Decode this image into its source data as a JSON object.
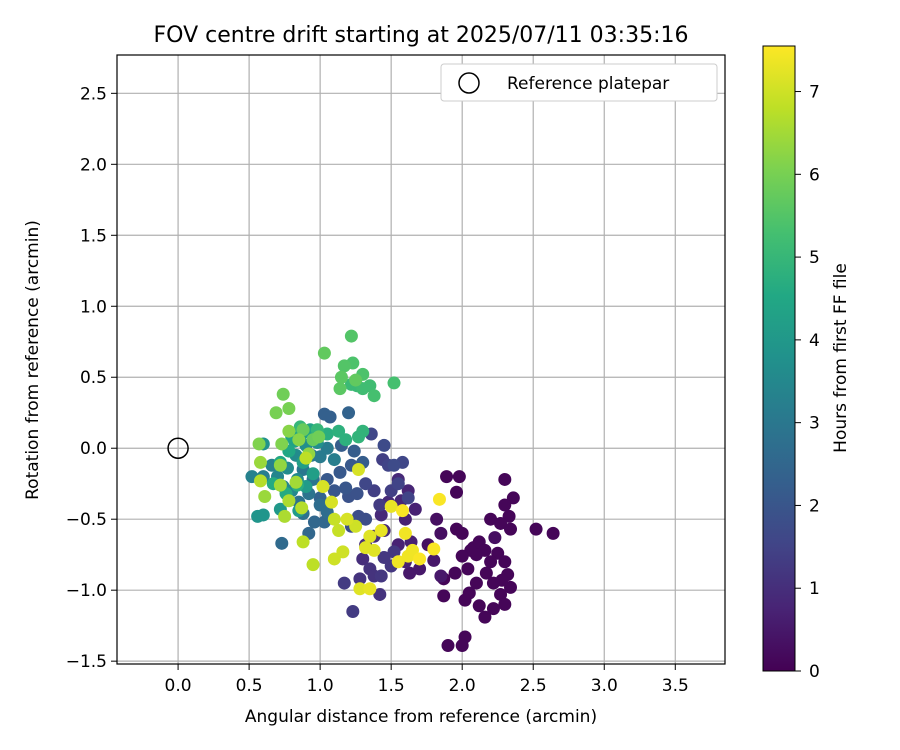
{
  "chart_data": {
    "type": "scatter",
    "title": "FOV centre drift starting at 2025/07/11 03:35:16",
    "xlabel": "Angular distance from reference (arcmin)",
    "ylabel": "Rotation from reference (arcmin)",
    "xlim": [
      -0.43,
      3.85
    ],
    "ylim": [
      -1.52,
      2.77
    ],
    "xticks": [
      "0.0",
      "0.5",
      "1.0",
      "1.5",
      "2.0",
      "2.5",
      "3.0",
      "3.5"
    ],
    "xtick_values": [
      0.0,
      0.5,
      1.0,
      1.5,
      2.0,
      2.5,
      3.0,
      3.5
    ],
    "yticks": [
      "−1.5",
      "−1.0",
      "−0.5",
      "0.0",
      "0.5",
      "1.0",
      "1.5",
      "2.0",
      "2.5"
    ],
    "ytick_values": [
      -1.5,
      -1.0,
      -0.5,
      0.0,
      0.5,
      1.0,
      1.5,
      2.0,
      2.5
    ],
    "grid": true,
    "legend": {
      "position": "top-right",
      "entries": [
        "Reference platepar"
      ]
    },
    "reference_point": {
      "x": 0.0,
      "y": 0.0
    },
    "colorbar": {
      "label": "Hours from first FF file",
      "colormap": "viridis",
      "min": 0,
      "max": 7.55,
      "ticks": [
        "0",
        "1",
        "2",
        "3",
        "4",
        "5",
        "6",
        "7"
      ],
      "tick_values": [
        0,
        1,
        2,
        3,
        4,
        5,
        6,
        7
      ]
    },
    "points": [
      {
        "x": 1.89,
        "y": -0.2,
        "t": 0.1
      },
      {
        "x": 1.98,
        "y": -0.2,
        "t": 0.1
      },
      {
        "x": 1.96,
        "y": -0.31,
        "t": 0.1
      },
      {
        "x": 2.3,
        "y": -0.22,
        "t": 0.1
      },
      {
        "x": 2.36,
        "y": -0.35,
        "t": 0.1
      },
      {
        "x": 2.3,
        "y": -0.4,
        "t": 0.1
      },
      {
        "x": 2.33,
        "y": -0.48,
        "t": 0.1
      },
      {
        "x": 2.2,
        "y": -0.5,
        "t": 0.1
      },
      {
        "x": 2.27,
        "y": -0.53,
        "t": 0.1
      },
      {
        "x": 2.34,
        "y": -0.57,
        "t": 0.1
      },
      {
        "x": 2.52,
        "y": -0.57,
        "t": 0.1
      },
      {
        "x": 2.64,
        "y": -0.6,
        "t": 0.1
      },
      {
        "x": 2.08,
        "y": -0.7,
        "t": 0.1
      },
      {
        "x": 2.12,
        "y": -0.66,
        "t": 0.1
      },
      {
        "x": 2.16,
        "y": -0.72,
        "t": 0.1
      },
      {
        "x": 2.25,
        "y": -0.74,
        "t": 0.1
      },
      {
        "x": 2.3,
        "y": -0.8,
        "t": 0.1
      },
      {
        "x": 2.32,
        "y": -0.89,
        "t": 0.1
      },
      {
        "x": 2.34,
        "y": -0.98,
        "t": 0.1
      },
      {
        "x": 2.27,
        "y": -1.03,
        "t": 0.1
      },
      {
        "x": 2.3,
        "y": -1.1,
        "t": 0.1
      },
      {
        "x": 2.22,
        "y": -1.13,
        "t": 0.1
      },
      {
        "x": 2.16,
        "y": -1.19,
        "t": 0.1
      },
      {
        "x": 2.12,
        "y": -1.11,
        "t": 0.1
      },
      {
        "x": 2.05,
        "y": -1.02,
        "t": 0.1
      },
      {
        "x": 2.02,
        "y": -1.07,
        "t": 0.1
      },
      {
        "x": 2.1,
        "y": -0.95,
        "t": 0.1
      },
      {
        "x": 2.17,
        "y": -0.88,
        "t": 0.1
      },
      {
        "x": 2.2,
        "y": -0.8,
        "t": 0.1
      },
      {
        "x": 2.1,
        "y": -0.75,
        "t": 0.1
      },
      {
        "x": 2.06,
        "y": -0.72,
        "t": 0.1
      },
      {
        "x": 2.0,
        "y": -0.76,
        "t": 0.1
      },
      {
        "x": 2.04,
        "y": -0.85,
        "t": 0.1
      },
      {
        "x": 1.95,
        "y": -0.88,
        "t": 0.1
      },
      {
        "x": 1.87,
        "y": -0.92,
        "t": 0.1
      },
      {
        "x": 1.87,
        "y": -1.04,
        "t": 0.1
      },
      {
        "x": 2.02,
        "y": -1.33,
        "t": 0.1
      },
      {
        "x": 2.0,
        "y": -1.39,
        "t": 0.1
      },
      {
        "x": 1.9,
        "y": -1.39,
        "t": 0.1
      },
      {
        "x": 2.0,
        "y": -0.6,
        "t": 0.1
      },
      {
        "x": 1.96,
        "y": -0.57,
        "t": 0.1
      },
      {
        "x": 2.22,
        "y": -0.95,
        "t": 0.1
      },
      {
        "x": 2.28,
        "y": -0.93,
        "t": 0.1
      },
      {
        "x": 1.82,
        "y": -0.5,
        "t": 0.3
      },
      {
        "x": 1.85,
        "y": -0.6,
        "t": 0.3
      },
      {
        "x": 2.23,
        "y": -0.63,
        "t": 0.3
      },
      {
        "x": 1.76,
        "y": -0.68,
        "t": 0.3
      },
      {
        "x": 1.8,
        "y": -0.79,
        "t": 0.5
      },
      {
        "x": 1.85,
        "y": -0.9,
        "t": 0.5
      },
      {
        "x": 1.7,
        "y": -0.85,
        "t": 0.5
      },
      {
        "x": 1.63,
        "y": -0.88,
        "t": 0.5
      },
      {
        "x": 1.6,
        "y": -0.8,
        "t": 0.7
      },
      {
        "x": 1.55,
        "y": -0.68,
        "t": 0.7
      },
      {
        "x": 1.64,
        "y": -0.66,
        "t": 0.7
      },
      {
        "x": 1.6,
        "y": -0.5,
        "t": 0.7
      },
      {
        "x": 1.67,
        "y": -0.43,
        "t": 0.7
      },
      {
        "x": 1.57,
        "y": -0.37,
        "t": 0.8
      },
      {
        "x": 1.62,
        "y": -0.3,
        "t": 0.8
      },
      {
        "x": 1.55,
        "y": -0.22,
        "t": 0.9
      },
      {
        "x": 1.48,
        "y": -0.38,
        "t": 0.9
      },
      {
        "x": 1.43,
        "y": -0.47,
        "t": 0.9
      },
      {
        "x": 1.45,
        "y": -0.58,
        "t": 0.9
      },
      {
        "x": 1.38,
        "y": -0.62,
        "t": 1.0
      },
      {
        "x": 1.32,
        "y": -0.68,
        "t": 1.0
      },
      {
        "x": 1.3,
        "y": -0.78,
        "t": 1.0
      },
      {
        "x": 1.35,
        "y": -0.85,
        "t": 1.1
      },
      {
        "x": 1.38,
        "y": -0.9,
        "t": 1.1
      },
      {
        "x": 1.28,
        "y": -0.92,
        "t": 1.1
      },
      {
        "x": 1.42,
        "y": -1.03,
        "t": 1.1
      },
      {
        "x": 1.43,
        "y": -0.9,
        "t": 1.2
      },
      {
        "x": 1.5,
        "y": -0.83,
        "t": 1.2
      },
      {
        "x": 1.45,
        "y": -0.77,
        "t": 1.2
      },
      {
        "x": 1.52,
        "y": -0.73,
        "t": 1.2
      },
      {
        "x": 1.17,
        "y": -0.95,
        "t": 1.3
      },
      {
        "x": 1.23,
        "y": -1.15,
        "t": 1.3
      },
      {
        "x": 1.42,
        "y": -0.4,
        "t": 1.3
      },
      {
        "x": 1.5,
        "y": -0.3,
        "t": 1.4
      },
      {
        "x": 1.38,
        "y": -0.3,
        "t": 1.4
      },
      {
        "x": 1.44,
        "y": -0.08,
        "t": 1.4
      },
      {
        "x": 1.48,
        "y": -0.12,
        "t": 1.5
      },
      {
        "x": 1.55,
        "y": -0.25,
        "t": 1.5
      },
      {
        "x": 1.62,
        "y": -0.35,
        "t": 1.5
      },
      {
        "x": 1.58,
        "y": -0.1,
        "t": 1.6
      },
      {
        "x": 1.32,
        "y": -0.25,
        "t": 1.6
      },
      {
        "x": 1.36,
        "y": 0.1,
        "t": 1.6
      },
      {
        "x": 1.45,
        "y": 0.02,
        "t": 1.7
      },
      {
        "x": 1.52,
        "y": -0.12,
        "t": 1.7
      },
      {
        "x": 1.27,
        "y": -0.48,
        "t": 1.8
      },
      {
        "x": 1.32,
        "y": -0.5,
        "t": 1.8
      },
      {
        "x": 1.22,
        "y": -0.55,
        "t": 1.8
      },
      {
        "x": 1.2,
        "y": -0.34,
        "t": 1.9
      },
      {
        "x": 1.26,
        "y": -0.32,
        "t": 1.9
      },
      {
        "x": 1.18,
        "y": -0.28,
        "t": 2.0
      },
      {
        "x": 1.1,
        "y": -0.3,
        "t": 2.0
      },
      {
        "x": 1.05,
        "y": -0.22,
        "t": 2.1
      },
      {
        "x": 1.14,
        "y": -0.17,
        "t": 2.1
      },
      {
        "x": 1.22,
        "y": -0.12,
        "t": 2.1
      },
      {
        "x": 1.3,
        "y": -0.1,
        "t": 2.2
      },
      {
        "x": 1.24,
        "y": -0.02,
        "t": 2.2
      },
      {
        "x": 1.15,
        "y": 0.02,
        "t": 2.2
      },
      {
        "x": 1.03,
        "y": 0.24,
        "t": 2.3
      },
      {
        "x": 1.07,
        "y": 0.22,
        "t": 2.3
      },
      {
        "x": 1.2,
        "y": 0.25,
        "t": 2.4
      },
      {
        "x": 1.0,
        "y": -0.35,
        "t": 2.4
      },
      {
        "x": 0.96,
        "y": -0.52,
        "t": 2.5
      },
      {
        "x": 0.92,
        "y": -0.6,
        "t": 2.5
      },
      {
        "x": 1.03,
        "y": -0.52,
        "t": 2.5
      },
      {
        "x": 0.73,
        "y": -0.67,
        "t": 2.6
      },
      {
        "x": 1.0,
        "y": -0.4,
        "t": 2.7
      },
      {
        "x": 1.05,
        "y": -0.45,
        "t": 2.7
      },
      {
        "x": 0.88,
        "y": -0.46,
        "t": 2.8
      },
      {
        "x": 0.85,
        "y": -0.38,
        "t": 2.8
      },
      {
        "x": 0.92,
        "y": -0.32,
        "t": 2.9
      },
      {
        "x": 0.95,
        "y": -0.22,
        "t": 2.9
      },
      {
        "x": 0.88,
        "y": -0.15,
        "t": 3.0
      },
      {
        "x": 0.94,
        "y": -0.05,
        "t": 3.0
      },
      {
        "x": 1.0,
        "y": -0.06,
        "t": 3.1
      },
      {
        "x": 1.05,
        "y": 0.0,
        "t": 3.1
      },
      {
        "x": 1.1,
        "y": -0.08,
        "t": 3.2
      },
      {
        "x": 0.6,
        "y": -0.2,
        "t": 3.2
      },
      {
        "x": 0.52,
        "y": -0.2,
        "t": 3.3
      },
      {
        "x": 0.66,
        "y": -0.12,
        "t": 3.3
      },
      {
        "x": 0.7,
        "y": -0.2,
        "t": 3.4
      },
      {
        "x": 0.74,
        "y": -0.27,
        "t": 3.4
      },
      {
        "x": 0.8,
        "y": -0.3,
        "t": 3.5
      },
      {
        "x": 0.84,
        "y": -0.22,
        "t": 3.5
      },
      {
        "x": 0.77,
        "y": -0.14,
        "t": 3.6
      },
      {
        "x": 0.83,
        "y": -0.05,
        "t": 3.6
      },
      {
        "x": 0.9,
        "y": 0.02,
        "t": 3.7
      },
      {
        "x": 0.98,
        "y": 0.04,
        "t": 3.7
      },
      {
        "x": 0.6,
        "y": 0.03,
        "t": 3.8
      },
      {
        "x": 0.56,
        "y": -0.48,
        "t": 3.9
      },
      {
        "x": 0.6,
        "y": -0.47,
        "t": 3.9
      },
      {
        "x": 0.72,
        "y": -0.43,
        "t": 4.0
      },
      {
        "x": 0.85,
        "y": -0.44,
        "t": 4.1
      },
      {
        "x": 0.9,
        "y": -0.27,
        "t": 4.1
      },
      {
        "x": 0.95,
        "y": -0.18,
        "t": 4.2
      },
      {
        "x": 0.88,
        "y": -0.1,
        "t": 4.2
      },
      {
        "x": 0.82,
        "y": 0.05,
        "t": 4.3
      },
      {
        "x": 0.87,
        "y": 0.1,
        "t": 4.3
      },
      {
        "x": 0.93,
        "y": 0.13,
        "t": 4.4
      },
      {
        "x": 0.8,
        "y": 0.08,
        "t": 4.4
      },
      {
        "x": 0.78,
        "y": -0.02,
        "t": 4.5
      },
      {
        "x": 0.72,
        "y": -0.1,
        "t": 4.5
      },
      {
        "x": 0.67,
        "y": -0.25,
        "t": 4.6
      },
      {
        "x": 0.76,
        "y": -0.32,
        "t": 4.6
      },
      {
        "x": 0.84,
        "y": -0.26,
        "t": 4.7
      },
      {
        "x": 1.05,
        "y": 0.1,
        "t": 4.7
      },
      {
        "x": 1.13,
        "y": 0.12,
        "t": 4.8
      },
      {
        "x": 1.18,
        "y": 0.06,
        "t": 4.8
      },
      {
        "x": 1.27,
        "y": 0.08,
        "t": 4.9
      },
      {
        "x": 1.3,
        "y": 0.12,
        "t": 4.9
      },
      {
        "x": 0.98,
        "y": 0.13,
        "t": 5.0
      },
      {
        "x": 0.86,
        "y": 0.15,
        "t": 5.0
      },
      {
        "x": 1.22,
        "y": 0.45,
        "t": 5.1
      },
      {
        "x": 1.26,
        "y": 0.44,
        "t": 5.1
      },
      {
        "x": 1.3,
        "y": 0.42,
        "t": 5.2
      },
      {
        "x": 1.35,
        "y": 0.44,
        "t": 5.2
      },
      {
        "x": 1.38,
        "y": 0.37,
        "t": 5.3
      },
      {
        "x": 1.52,
        "y": 0.46,
        "t": 5.3
      },
      {
        "x": 1.3,
        "y": 0.52,
        "t": 5.4
      },
      {
        "x": 1.23,
        "y": 0.6,
        "t": 5.4
      },
      {
        "x": 1.17,
        "y": 0.58,
        "t": 5.5
      },
      {
        "x": 1.22,
        "y": 0.79,
        "t": 5.5
      },
      {
        "x": 1.14,
        "y": 0.42,
        "t": 5.6
      },
      {
        "x": 1.15,
        "y": 0.5,
        "t": 5.6
      },
      {
        "x": 1.25,
        "y": 0.48,
        "t": 5.7
      },
      {
        "x": 1.03,
        "y": 0.67,
        "t": 5.7
      },
      {
        "x": 0.88,
        "y": 0.13,
        "t": 5.8
      },
      {
        "x": 0.95,
        "y": 0.06,
        "t": 5.8
      },
      {
        "x": 0.99,
        "y": 0.08,
        "t": 5.9
      },
      {
        "x": 0.74,
        "y": 0.38,
        "t": 5.9
      },
      {
        "x": 0.78,
        "y": 0.28,
        "t": 6.0
      },
      {
        "x": 0.69,
        "y": 0.25,
        "t": 6.0
      },
      {
        "x": 0.57,
        "y": 0.03,
        "t": 6.1
      },
      {
        "x": 0.73,
        "y": 0.03,
        "t": 6.1
      },
      {
        "x": 0.78,
        "y": 0.12,
        "t": 6.2
      },
      {
        "x": 0.85,
        "y": 0.06,
        "t": 6.2
      },
      {
        "x": 0.92,
        "y": -0.04,
        "t": 6.3
      },
      {
        "x": 0.72,
        "y": -0.12,
        "t": 6.3
      },
      {
        "x": 0.61,
        "y": -0.34,
        "t": 6.4
      },
      {
        "x": 0.58,
        "y": -0.1,
        "t": 6.4
      },
      {
        "x": 0.72,
        "y": -0.26,
        "t": 6.5
      },
      {
        "x": 0.83,
        "y": -0.24,
        "t": 6.5
      },
      {
        "x": 0.78,
        "y": -0.37,
        "t": 6.6
      },
      {
        "x": 0.75,
        "y": -0.48,
        "t": 6.6
      },
      {
        "x": 0.87,
        "y": -0.42,
        "t": 6.7
      },
      {
        "x": 0.58,
        "y": -0.23,
        "t": 6.7
      },
      {
        "x": 0.9,
        "y": -0.07,
        "t": 6.8
      },
      {
        "x": 0.88,
        "y": -0.66,
        "t": 6.8
      },
      {
        "x": 0.95,
        "y": -0.82,
        "t": 6.8
      },
      {
        "x": 1.1,
        "y": -0.5,
        "t": 6.9
      },
      {
        "x": 1.13,
        "y": -0.58,
        "t": 6.9
      },
      {
        "x": 1.25,
        "y": -0.55,
        "t": 7.0
      },
      {
        "x": 1.16,
        "y": -0.73,
        "t": 7.0
      },
      {
        "x": 1.1,
        "y": -0.78,
        "t": 7.0
      },
      {
        "x": 1.02,
        "y": -0.27,
        "t": 7.1
      },
      {
        "x": 1.08,
        "y": -0.38,
        "t": 7.1
      },
      {
        "x": 1.19,
        "y": -0.5,
        "t": 7.1
      },
      {
        "x": 1.27,
        "y": -0.15,
        "t": 7.1
      },
      {
        "x": 1.32,
        "y": -0.7,
        "t": 7.2
      },
      {
        "x": 1.38,
        "y": -0.72,
        "t": 7.2
      },
      {
        "x": 1.35,
        "y": -0.62,
        "t": 7.2
      },
      {
        "x": 1.28,
        "y": -0.99,
        "t": 7.2
      },
      {
        "x": 1.35,
        "y": -0.99,
        "t": 7.3
      },
      {
        "x": 1.43,
        "y": -0.58,
        "t": 7.3
      },
      {
        "x": 1.5,
        "y": -0.41,
        "t": 7.3
      },
      {
        "x": 1.55,
        "y": -0.8,
        "t": 7.4
      },
      {
        "x": 1.62,
        "y": -0.76,
        "t": 7.4
      },
      {
        "x": 1.65,
        "y": -0.72,
        "t": 7.4
      },
      {
        "x": 1.6,
        "y": -0.6,
        "t": 7.4
      },
      {
        "x": 1.58,
        "y": -0.44,
        "t": 7.5
      },
      {
        "x": 1.8,
        "y": -0.71,
        "t": 7.5
      },
      {
        "x": 1.84,
        "y": -0.36,
        "t": 7.5
      },
      {
        "x": 1.7,
        "y": -0.78,
        "t": 7.5
      }
    ]
  }
}
